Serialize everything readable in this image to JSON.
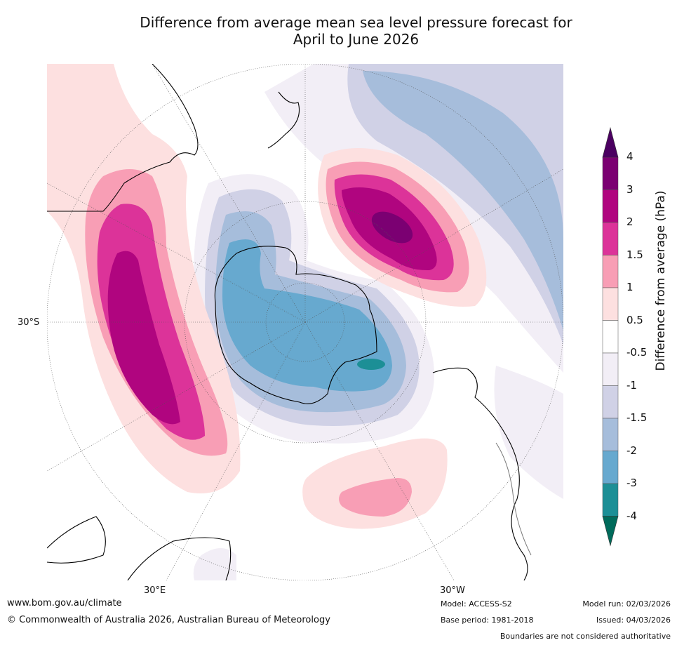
{
  "title_line1": "Difference from average mean sea level pressure forecast for",
  "title_line2": "April to June 2026",
  "map_labels": {
    "lat_left": "30°S",
    "lon_30e": "30°E",
    "lon_30w": "30°W"
  },
  "colorbar": {
    "title": "Difference from average (hPa)",
    "ticks": [
      "4",
      "3",
      "2",
      "1.5",
      "1",
      "0.5",
      "-0.5",
      "-1",
      "-1.5",
      "-2",
      "-3",
      "-4"
    ],
    "bins": [
      {
        "range": "3 to 4",
        "color": "#7b0072"
      },
      {
        "range": "2 to 3",
        "color": "#b0057f"
      },
      {
        "range": "1.5 to 2",
        "color": "#dc3399"
      },
      {
        "range": "1 to 1.5",
        "color": "#f89eb5"
      },
      {
        "range": "0.5 to 1",
        "color": "#fde0e0"
      },
      {
        "range": "-0.5 to 0.5",
        "color": "#ffffff"
      },
      {
        "range": "-1 to -0.5",
        "color": "#f2eef6"
      },
      {
        "range": "-1.5 to -1",
        "color": "#d0d1e6"
      },
      {
        "range": "-2 to -1.5",
        "color": "#a6bddb"
      },
      {
        "range": "-3 to -2",
        "color": "#67a9cf"
      },
      {
        "range": "-4 to -3",
        "color": "#1c8f96"
      }
    ],
    "over_color": "#4b0061",
    "under_color": "#006b5b"
  },
  "footer": {
    "website": "www.bom.gov.au/climate",
    "copyright": "© Commonwealth of Australia 2026, Australian Bureau of Meteorology",
    "model": "Model: ACCESS-S2",
    "base_period": "Base period: 1981-2018",
    "model_run": "Model run: 02/03/2026",
    "issued": "Issued: 04/03/2026",
    "disclaimer": "Boundaries are not considered authoritative"
  }
}
